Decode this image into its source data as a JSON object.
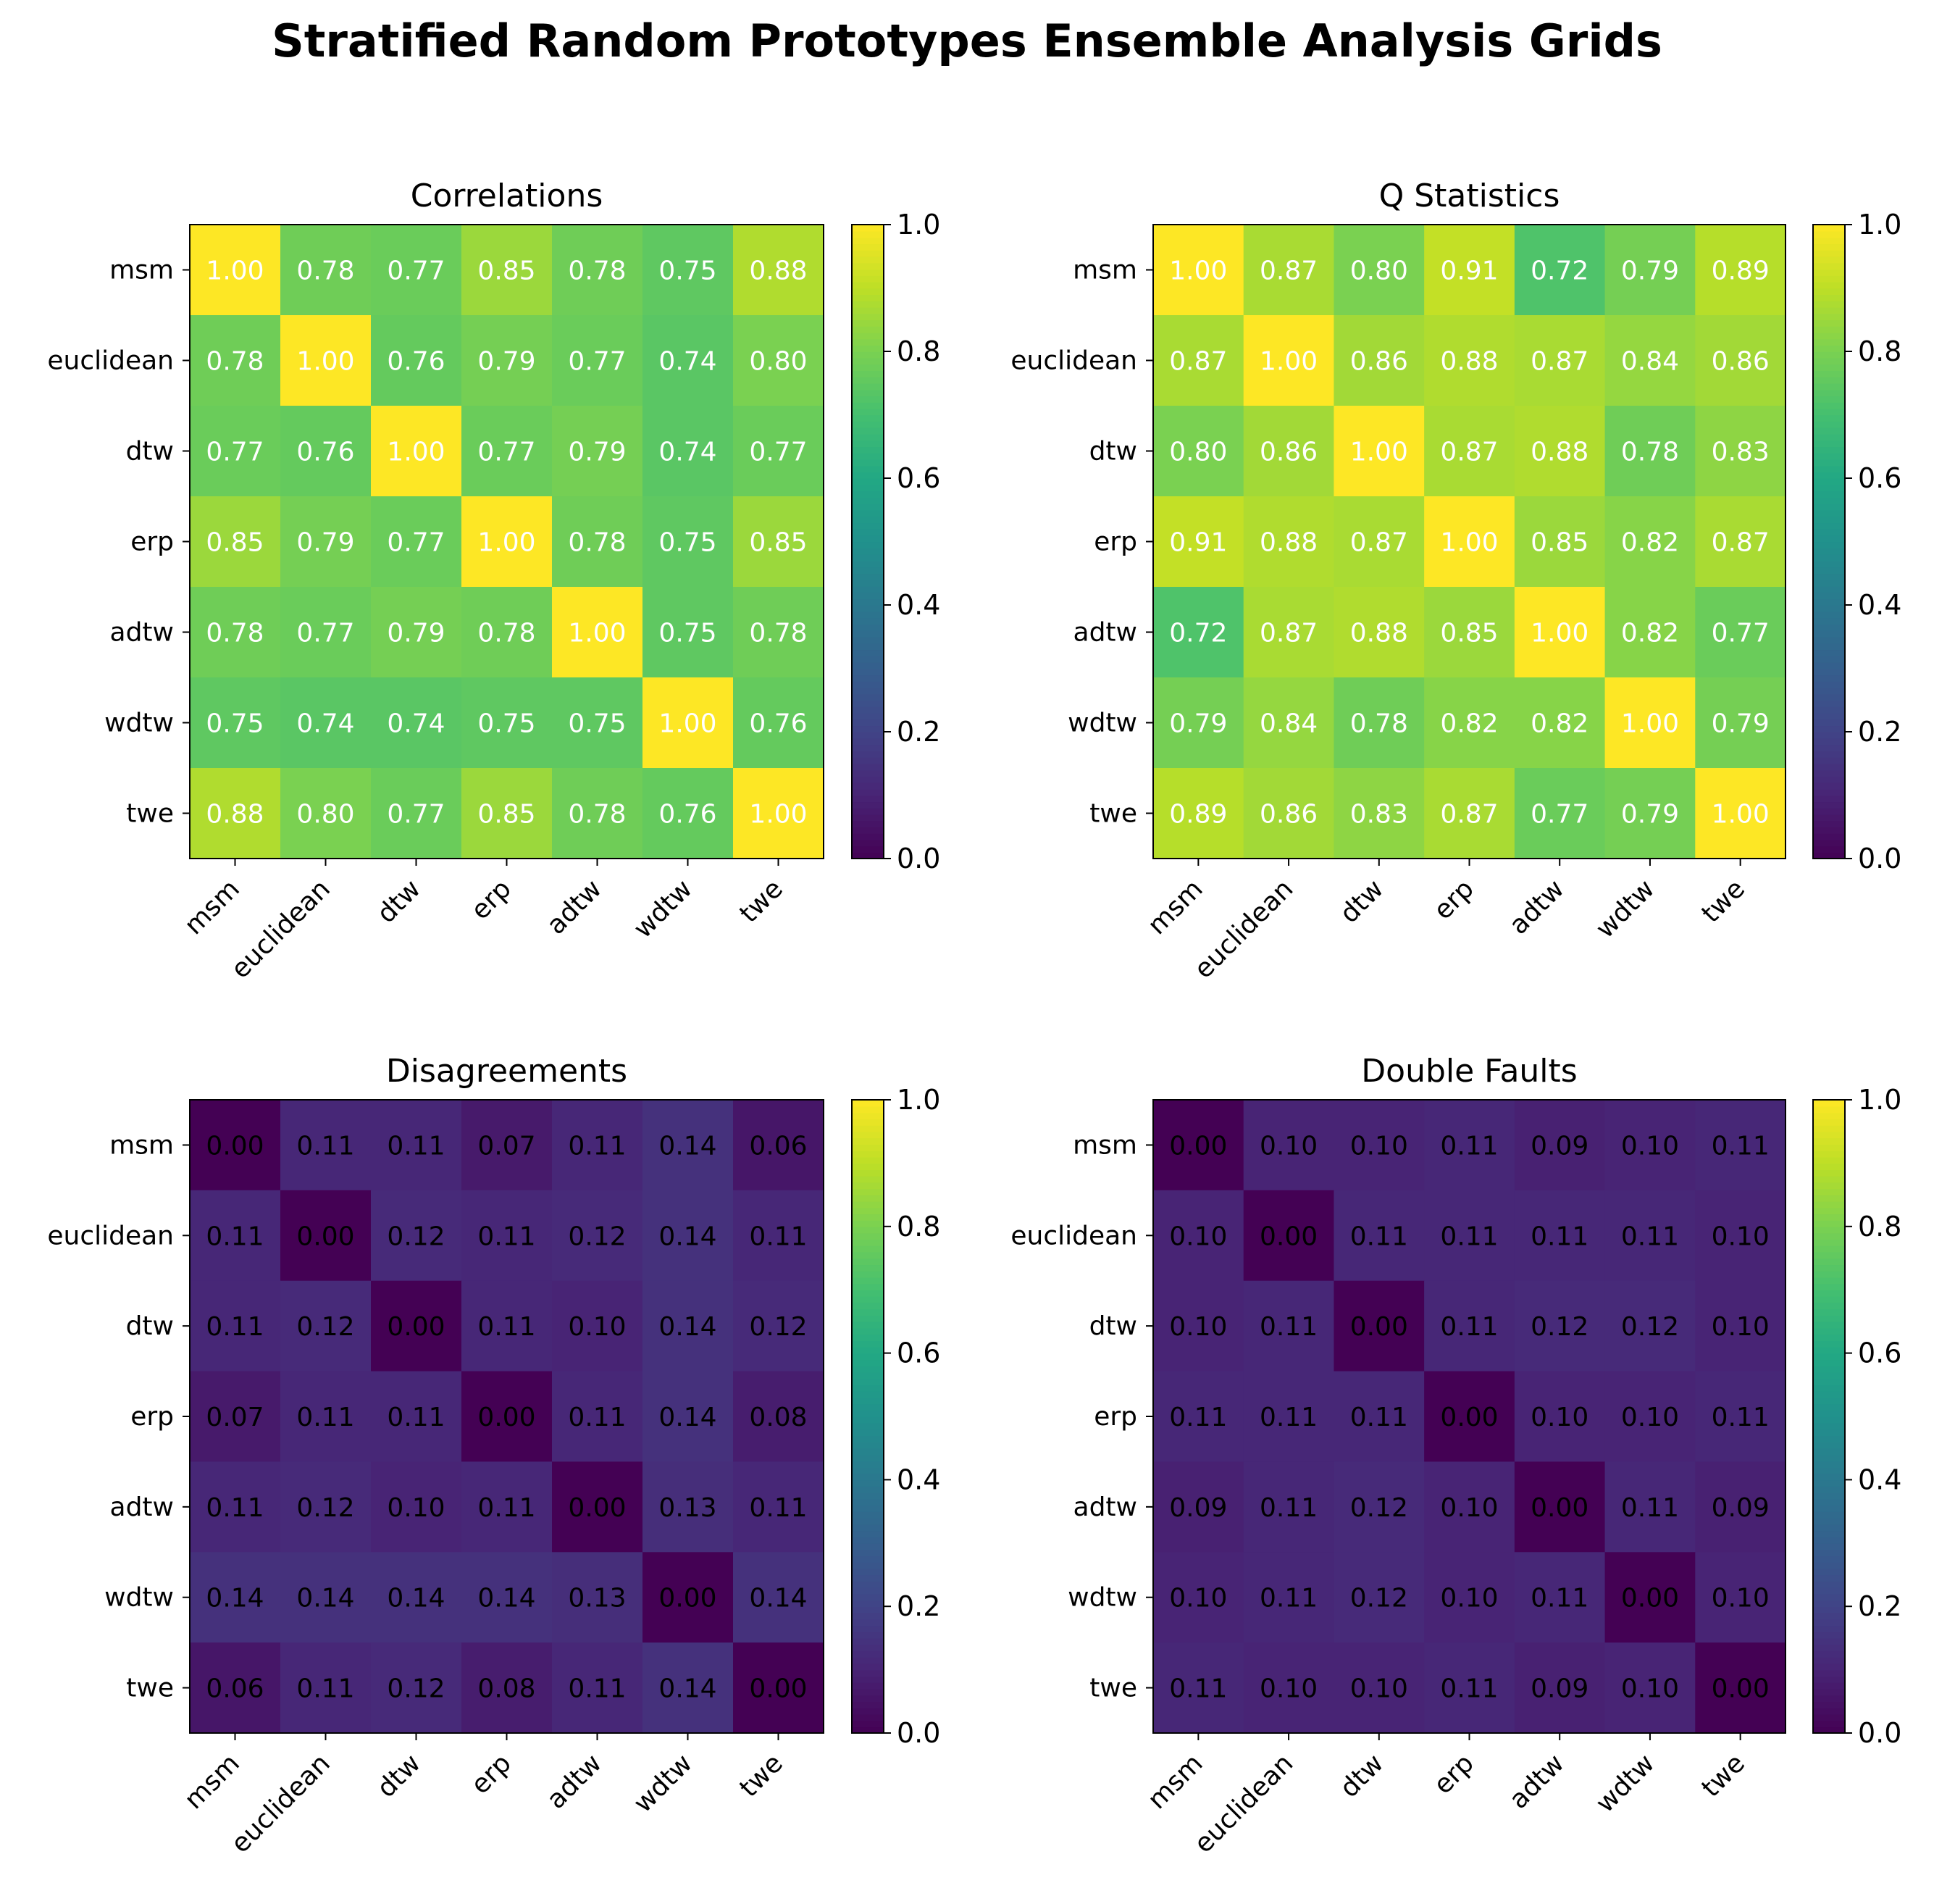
{
  "title": "Stratified Random Prototypes Ensemble Analysis Grids",
  "chart_data": [
    {
      "type": "heatmap",
      "title": "Correlations",
      "labels": [
        "msm",
        "euclidean",
        "dtw",
        "erp",
        "adtw",
        "wdtw",
        "twe"
      ],
      "values": [
        [
          1.0,
          0.78,
          0.77,
          0.85,
          0.78,
          0.75,
          0.88
        ],
        [
          0.78,
          1.0,
          0.76,
          0.79,
          0.77,
          0.74,
          0.8
        ],
        [
          0.77,
          0.76,
          1.0,
          0.77,
          0.79,
          0.74,
          0.77
        ],
        [
          0.85,
          0.79,
          0.77,
          1.0,
          0.78,
          0.75,
          0.85
        ],
        [
          0.78,
          0.77,
          0.79,
          0.78,
          1.0,
          0.75,
          0.78
        ],
        [
          0.75,
          0.74,
          0.74,
          0.75,
          0.75,
          1.0,
          0.76
        ],
        [
          0.88,
          0.8,
          0.77,
          0.85,
          0.78,
          0.76,
          1.0
        ]
      ],
      "vmin": 0,
      "vmax": 1,
      "colormap": "viridis",
      "colorbar_ticks": [
        "0.0",
        "0.2",
        "0.4",
        "0.6",
        "0.8",
        "1.0"
      ],
      "annotation_color": "#ffffff"
    },
    {
      "type": "heatmap",
      "title": "Q Statistics",
      "labels": [
        "msm",
        "euclidean",
        "dtw",
        "erp",
        "adtw",
        "wdtw",
        "twe"
      ],
      "values": [
        [
          1.0,
          0.87,
          0.8,
          0.91,
          0.72,
          0.79,
          0.89
        ],
        [
          0.87,
          1.0,
          0.86,
          0.88,
          0.87,
          0.84,
          0.86
        ],
        [
          0.8,
          0.86,
          1.0,
          0.87,
          0.88,
          0.78,
          0.83
        ],
        [
          0.91,
          0.88,
          0.87,
          1.0,
          0.85,
          0.82,
          0.87
        ],
        [
          0.72,
          0.87,
          0.88,
          0.85,
          1.0,
          0.82,
          0.77
        ],
        [
          0.79,
          0.84,
          0.78,
          0.82,
          0.82,
          1.0,
          0.79
        ],
        [
          0.89,
          0.86,
          0.83,
          0.87,
          0.77,
          0.79,
          1.0
        ]
      ],
      "vmin": 0,
      "vmax": 1,
      "colormap": "viridis",
      "colorbar_ticks": [
        "0.0",
        "0.2",
        "0.4",
        "0.6",
        "0.8",
        "1.0"
      ],
      "annotation_color": "#ffffff"
    },
    {
      "type": "heatmap",
      "title": "Disagreements",
      "labels": [
        "msm",
        "euclidean",
        "dtw",
        "erp",
        "adtw",
        "wdtw",
        "twe"
      ],
      "values": [
        [
          0.0,
          0.11,
          0.11,
          0.07,
          0.11,
          0.14,
          0.06
        ],
        [
          0.11,
          0.0,
          0.12,
          0.11,
          0.12,
          0.14,
          0.11
        ],
        [
          0.11,
          0.12,
          0.0,
          0.11,
          0.1,
          0.14,
          0.12
        ],
        [
          0.07,
          0.11,
          0.11,
          0.0,
          0.11,
          0.14,
          0.08
        ],
        [
          0.11,
          0.12,
          0.1,
          0.11,
          0.0,
          0.13,
          0.11
        ],
        [
          0.14,
          0.14,
          0.14,
          0.14,
          0.13,
          0.0,
          0.14
        ],
        [
          0.06,
          0.11,
          0.12,
          0.08,
          0.11,
          0.14,
          0.0
        ]
      ],
      "vmin": 0,
      "vmax": 1,
      "colormap": "viridis",
      "colorbar_ticks": [
        "0.0",
        "0.2",
        "0.4",
        "0.6",
        "0.8",
        "1.0"
      ],
      "annotation_color": "#000000"
    },
    {
      "type": "heatmap",
      "title": "Double Faults",
      "labels": [
        "msm",
        "euclidean",
        "dtw",
        "erp",
        "adtw",
        "wdtw",
        "twe"
      ],
      "values": [
        [
          0.0,
          0.1,
          0.1,
          0.11,
          0.09,
          0.1,
          0.11
        ],
        [
          0.1,
          0.0,
          0.11,
          0.11,
          0.11,
          0.11,
          0.1
        ],
        [
          0.1,
          0.11,
          0.0,
          0.11,
          0.12,
          0.12,
          0.1
        ],
        [
          0.11,
          0.11,
          0.11,
          0.0,
          0.1,
          0.1,
          0.11
        ],
        [
          0.09,
          0.11,
          0.12,
          0.1,
          0.0,
          0.11,
          0.09
        ],
        [
          0.1,
          0.11,
          0.12,
          0.1,
          0.11,
          0.0,
          0.1
        ],
        [
          0.11,
          0.1,
          0.1,
          0.11,
          0.09,
          0.1,
          0.0
        ]
      ],
      "vmin": 0,
      "vmax": 1,
      "colormap": "viridis",
      "colorbar_ticks": [
        "0.0",
        "0.2",
        "0.4",
        "0.6",
        "0.8",
        "1.0"
      ],
      "annotation_color": "#000000"
    }
  ]
}
